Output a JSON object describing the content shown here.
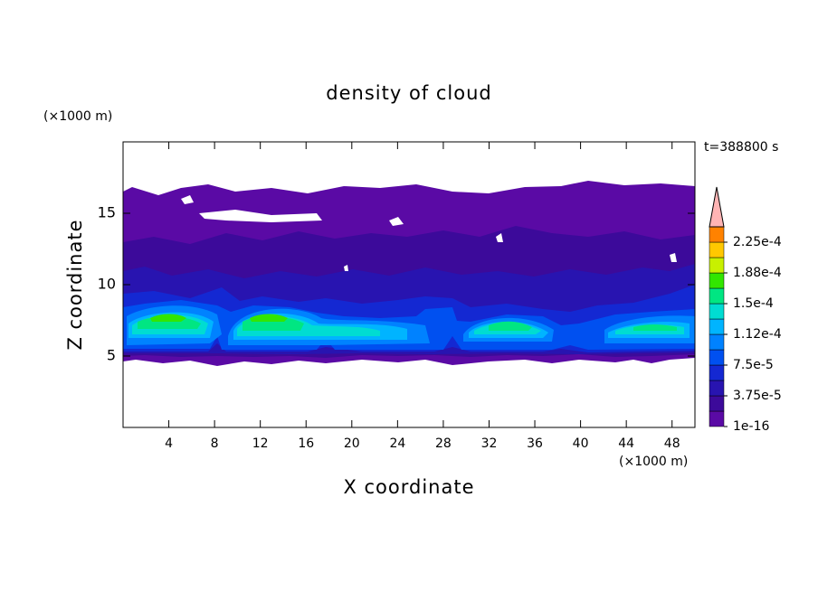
{
  "chart_data": {
    "type": "contour",
    "title": "density of cloud",
    "x_label": "X coordinate",
    "y_label": "Z coordinate",
    "x_unit": "(×1000 m)",
    "y_unit": "(×1000 m)",
    "time_label": "t=388800 s",
    "xlim": [
      0,
      50
    ],
    "xticks": [
      4,
      8,
      12,
      16,
      20,
      24,
      28,
      32,
      36,
      40,
      44,
      48
    ],
    "ylim": [
      0,
      20
    ],
    "yticks": [
      5,
      10,
      15
    ],
    "colorbar": {
      "lim": [
        0,
        0.00024375
      ],
      "colors": [
        "#5a0aa5",
        "#3c0a9a",
        "#2814b0",
        "#1428d2",
        "#0050f0",
        "#0082ff",
        "#00b4ff",
        "#00dcd2",
        "#00e682",
        "#32e600",
        "#c8f000",
        "#ffc800",
        "#ff8200"
      ],
      "extend_color": "#ffb4b4",
      "ticks": [
        {
          "value": 1e-16,
          "label": "1e-16"
        },
        {
          "value": 3.75e-05,
          "label": "3.75e-5"
        },
        {
          "value": 7.5e-05,
          "label": "7.5e-5"
        },
        {
          "value": 0.0001125,
          "label": "1.12e-4"
        },
        {
          "value": 0.00015,
          "label": "1.5e-4"
        },
        {
          "value": 0.0001875,
          "label": "1.88e-4"
        },
        {
          "value": 0.000225,
          "label": "2.25e-4"
        }
      ]
    }
  }
}
